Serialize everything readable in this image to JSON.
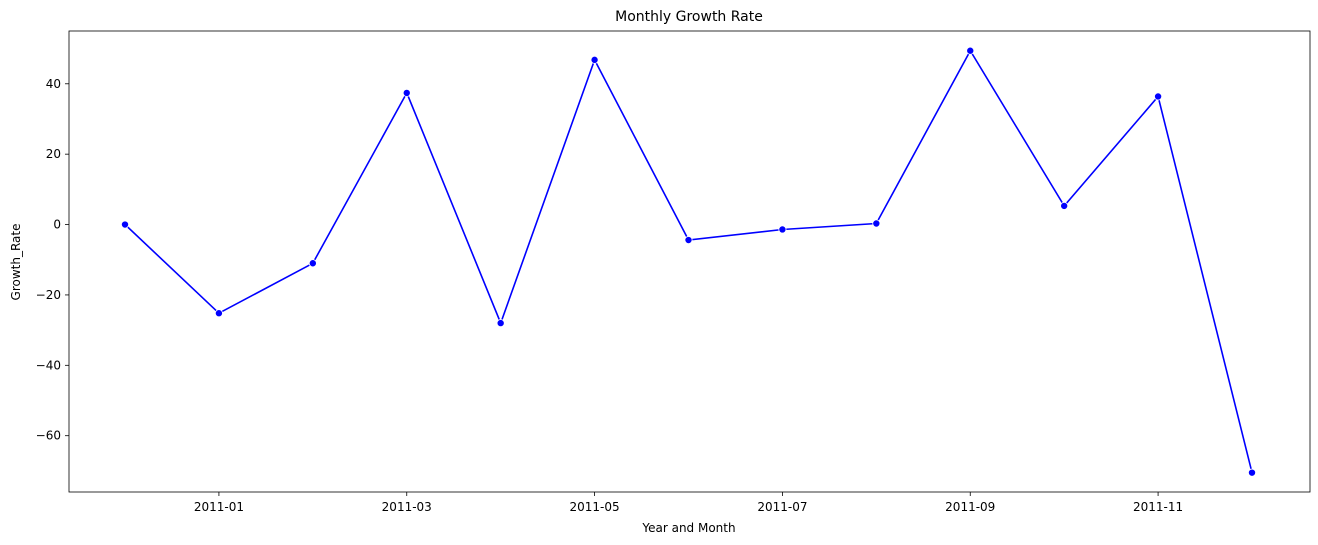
{
  "chart_data": {
    "type": "line",
    "title": "Monthly Growth Rate",
    "xlabel": "Year and Month",
    "ylabel": "Growth_Rate",
    "x": [
      "2010-12",
      "2011-01",
      "2011-02",
      "2011-03",
      "2011-04",
      "2011-05",
      "2011-06",
      "2011-07",
      "2011-08",
      "2011-09",
      "2011-10",
      "2011-11",
      "2011-12"
    ],
    "series": [
      {
        "values": [
          0,
          -25.2,
          -11.0,
          37.4,
          -28.0,
          46.8,
          -4.4,
          -1.4,
          0.3,
          49.4,
          5.3,
          36.4,
          -70.5
        ]
      }
    ],
    "x_ticks": [
      "2011-01",
      "2011-03",
      "2011-05",
      "2011-07",
      "2011-09",
      "2011-11"
    ],
    "y_ticks": [
      40,
      20,
      0,
      -20,
      -40,
      -60
    ],
    "ylim": [
      -76,
      55
    ],
    "grid": false,
    "line_color": "#0000ff",
    "marker_color": "#0000ff"
  }
}
